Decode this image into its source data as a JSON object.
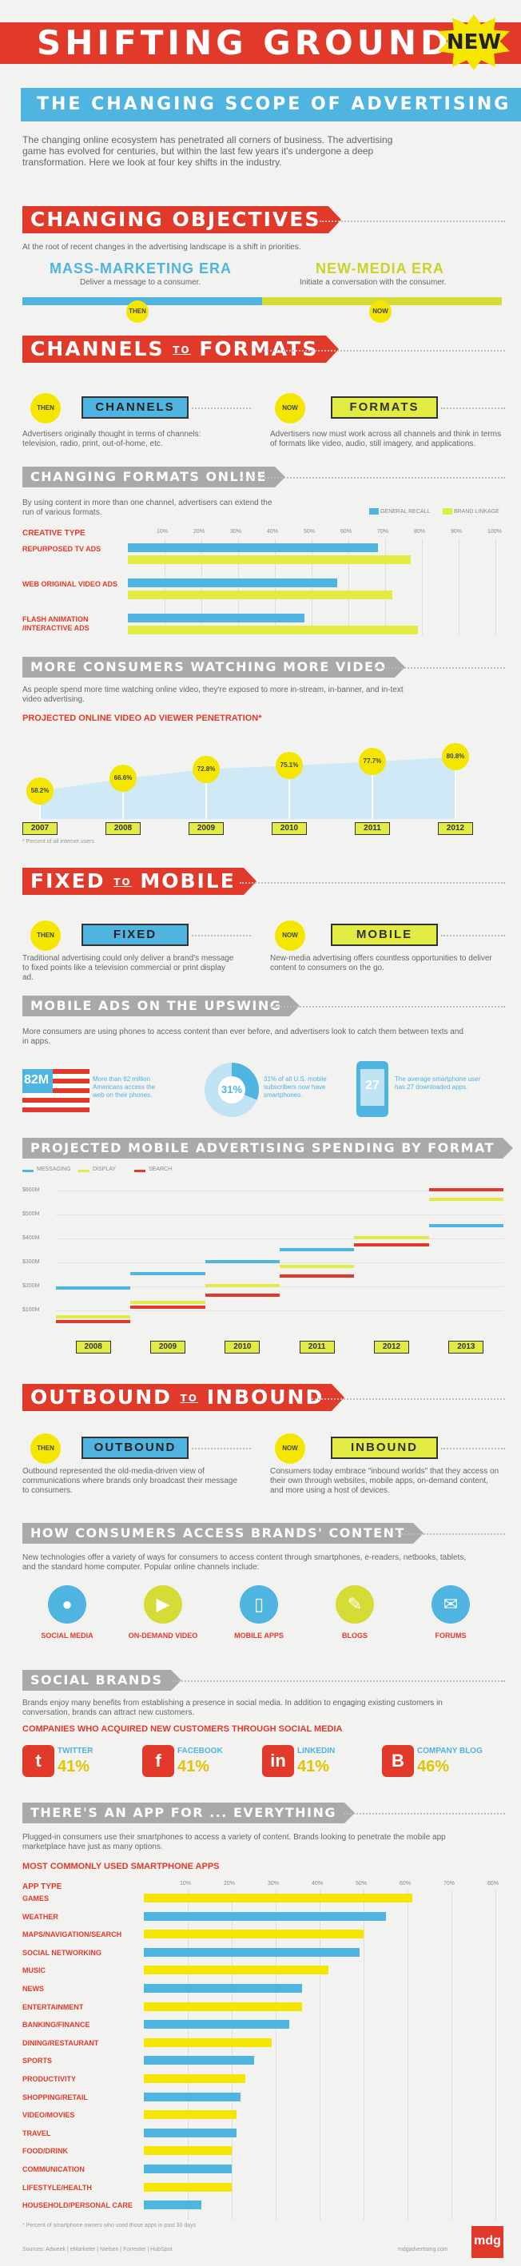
{
  "header": {
    "title": "SHIFTING GROUND",
    "badge": "NEW",
    "subtitle": "THE CHANGING SCOPE OF ADVERTISING",
    "intro": "The changing online ecosystem has penetrated all corners of business. The advertising game has evolved for centuries, but within the last few years it's undergone a deep transformation. Here we look at four key shifts in the industry."
  },
  "s1": {
    "title": "CHANGING OBJECTIVES",
    "intro": "At the root of recent changes in the advertising landscape is a shift in priorities.",
    "era1_title": "MASS-MARKETING ERA",
    "era1_text": "Deliver a message to a consumer.",
    "era2_title": "NEW-MEDIA ERA",
    "era2_text": "Initiate a conversation with the consumer.",
    "then": "THEN",
    "now": "NOW"
  },
  "s2": {
    "title": "CHANNELS",
    "to": "TO",
    "title2": "FORMATS",
    "then": "THEN",
    "now": "NOW",
    "box1": "CHANNELS",
    "box2": "FORMATS",
    "text1": "Advertisers originally thought in terms of channels: television, radio, print, out-of-home, etc.",
    "text2": "Advertisers now must work across all channels and think in terms of formats like video, audio, still imagery, and applications.",
    "sub": "CHANGING FORMATS ONLINE",
    "subtext": "By using content in more than one channel, advertisers can extend the run of various formats.",
    "legend1": "GENERAL RECALL",
    "legend2": "BRAND LINKAGE",
    "coltitle": "CREATIVE TYPE"
  },
  "formats_chart": {
    "type": "bar",
    "ticks": [
      "10%",
      "20%",
      "30%",
      "40%",
      "50%",
      "60%",
      "70%",
      "80%",
      "90%",
      "100%"
    ],
    "categories": [
      "REPURPOSED TV ADS",
      "WEB ORIGINAL VIDEO ADS",
      "FLASH ANIMATION /INTERACTIVE ADS"
    ],
    "series": [
      {
        "name": "GENERAL RECALL",
        "values": [
          68,
          57,
          48
        ]
      },
      {
        "name": "BRAND LINKAGE",
        "values": [
          77,
          72,
          79
        ]
      }
    ],
    "colors": [
      "#4fb4e0",
      "#e2ea44"
    ]
  },
  "s3": {
    "title": "MORE CONSUMERS WATCHING MORE VIDEO",
    "text": "As people spend more time watching online video, they're exposed to more in-stream, in-banner, and in-text video advertising.",
    "charttitle": "PROJECTED ONLINE VIDEO AD VIEWER PENETRATION*",
    "footnote": "* Percent of all internet users"
  },
  "video_chart": {
    "type": "area",
    "categories": [
      "2007",
      "2008",
      "2009",
      "2010",
      "2011",
      "2012"
    ],
    "labels": [
      "58.2%",
      "66.6%",
      "72.8%",
      "75.1%",
      "77.7%",
      "80.8%"
    ],
    "values": [
      58.2,
      66.6,
      72.8,
      75.1,
      77.7,
      80.8
    ]
  },
  "s4": {
    "title": "FIXED",
    "to": "TO",
    "title2": "MOBILE",
    "then": "THEN",
    "now": "NOW",
    "box1": "FIXED",
    "box2": "MOBILE",
    "text1": "Traditional advertising could only deliver a brand's message to fixed points like a television commercial or print display ad.",
    "text2": "New-media advertising offers countless opportunities to deliver content to consumers on the go.",
    "sub": "MOBILE ADS ON THE UPSWING",
    "subtext": "More consumers are using phones to access content than ever before, and advertisers look to catch them between texts and in apps.",
    "stat1": "82M",
    "stat1text": "More than 82 million Americans access the web on their phones.",
    "stat2": "31%",
    "stat2text": "31% of all U.S. mobile subscribers now have smartphones.",
    "stat3": "27",
    "stat3text": "The average smartphone user has 27 downloaded apps.",
    "sub2": "PROJECTED MOBILE ADVERTISING SPENDING BY FORMAT"
  },
  "mobile_chart": {
    "type": "line",
    "legend": [
      "MESSAGING",
      "DISPLAY",
      "SEARCH"
    ],
    "colors": [
      "#4fb4e0",
      "#e2ea44",
      "#e23a2a"
    ],
    "yticks": [
      "$600M",
      "$500M",
      "$400M",
      "$300M",
      "$200M",
      "$100M"
    ],
    "categories": [
      "2008",
      "2009",
      "2010",
      "2011",
      "2012",
      "2013"
    ],
    "series": [
      {
        "name": "MESSAGING",
        "values": [
          200,
          260,
          310,
          360,
          410,
          460
        ]
      },
      {
        "name": "DISPLAY",
        "values": [
          80,
          140,
          210,
          290,
          410,
          570
        ]
      },
      {
        "name": "SEARCH",
        "values": [
          60,
          120,
          170,
          250,
          380,
          610
        ]
      }
    ],
    "ylim": [
      0,
      600
    ]
  },
  "s5": {
    "title": "OUTBOUND",
    "to": "TO",
    "title2": "INBOUND",
    "then": "THEN",
    "now": "NOW",
    "box1": "OUTBOUND",
    "box2": "INBOUND",
    "text1": "Outbound represented the old-media-driven view of communications where brands only broadcast their message to consumers.",
    "text2": "Consumers today embrace \"inbound worlds\" that they access on their own through websites, mobile apps, on-demand content, and more using a host of devices.",
    "sub": "HOW CONSUMERS ACCESS BRANDS' CONTENT",
    "subtext": "New technologies offer a variety of ways for consumers to access content through smartphones, e-readers, netbooks, tablets, and the standard home computer. Popular online channels include:",
    "channels": [
      "SOCIAL MEDIA",
      "ON-DEMAND VIDEO",
      "MOBILE APPS",
      "BLOGS",
      "FORUMS"
    ],
    "sub2": "SOCIAL BRANDS",
    "subtext2": "Brands enjoy many benefits from establishing a presence in social media. In addition to engaging existing customers in conversation, brands can attract new customers.",
    "companies_title": "COMPANIES WHO ACQUIRED NEW CUSTOMERS THROUGH SOCIAL MEDIA",
    "social": [
      {
        "name": "TWITTER",
        "pct": "41%",
        "color": "#e23a2a",
        "glyph": "t"
      },
      {
        "name": "FACEBOOK",
        "pct": "41%",
        "color": "#e23a2a",
        "glyph": "f"
      },
      {
        "name": "LINKEDIN",
        "pct": "41%",
        "color": "#e23a2a",
        "glyph": "in"
      },
      {
        "name": "COMPANY BLOG",
        "pct": "46%",
        "color": "#e23a2a",
        "glyph": "B"
      }
    ],
    "sub3": "THERE'S AN APP FOR ... EVERYTHING",
    "subtext3": "Plugged-in consumers use their smartphones to access a variety of content. Brands looking to penetrate the mobile app marketplace have just as many options.",
    "appstitle": "MOST COMMONLY USED SMARTPHONE APPS",
    "apptype": "APP TYPE",
    "footnote": "* Percent of smartphone owners who used those apps in past 30 days",
    "sources": "Sources: Adweek | eMarketer | Nielsen | Forrester | HubSpot",
    "brand": "mdgadvertising.com",
    "logo": "mdg"
  },
  "apps_chart": {
    "type": "bar",
    "ticks": [
      "10%",
      "20%",
      "30%",
      "40%",
      "50%",
      "60%",
      "70%",
      "80%"
    ],
    "categories": [
      "GAMES",
      "WEATHER",
      "MAPS/NAVIGATION/SEARCH",
      "SOCIAL NETWORKING",
      "MUSIC",
      "NEWS",
      "ENTERTAINMENT",
      "BANKING/FINANCE",
      "DINING/RESTAURANT",
      "SPORTS",
      "PRODUCTIVITY",
      "SHOPPING/RETAIL",
      "VIDEO/MOVIES",
      "TRAVEL",
      "FOOD/DRINK",
      "COMMUNICATION",
      "LIFESTYLE/HEALTH",
      "HOUSEHOLD/PERSONAL CARE"
    ],
    "values": [
      61,
      55,
      50,
      49,
      42,
      36,
      36,
      33,
      29,
      25,
      23,
      22,
      21,
      21,
      20,
      20,
      20,
      13
    ],
    "colors": [
      "#f5e600",
      "#4fb4e0",
      "#f5e600",
      "#4fb4e0",
      "#f5e600",
      "#4fb4e0",
      "#f5e600",
      "#4fb4e0",
      "#f5e600",
      "#4fb4e0",
      "#f5e600",
      "#4fb4e0",
      "#f5e600",
      "#4fb4e0",
      "#f5e600",
      "#4fb4e0",
      "#f5e600",
      "#4fb4e0"
    ]
  }
}
